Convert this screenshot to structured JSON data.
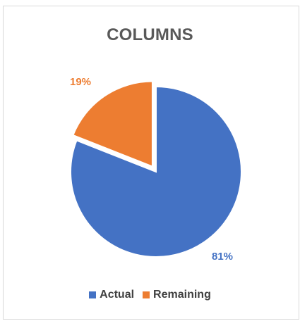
{
  "chart_data": {
    "type": "pie",
    "title": "COLUMNS",
    "categories": [
      "Actual",
      "Remaining"
    ],
    "values": [
      81,
      19
    ],
    "labels": [
      "81%",
      "19%"
    ],
    "colors": [
      "#4472C4",
      "#ED7D31"
    ],
    "exploded": [
      "Remaining"
    ],
    "legend_position": "bottom"
  }
}
